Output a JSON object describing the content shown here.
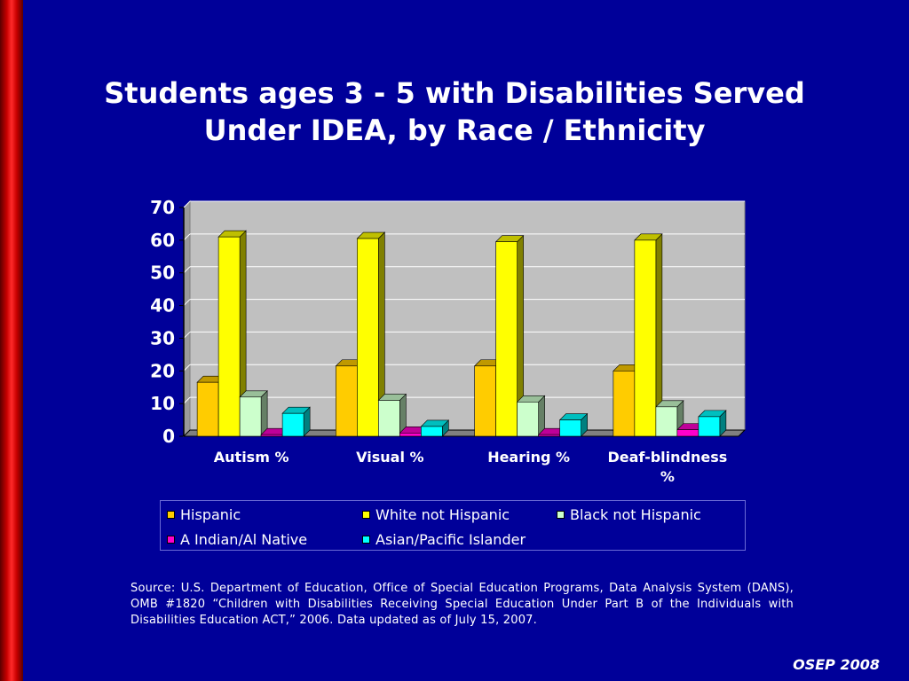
{
  "slide": {
    "title_line1": "Students ages 3 - 5 with Disabilities Served",
    "title_line2": "Under IDEA, by Race / Ethnicity",
    "source": "Source: U.S. Department of Education, Office of Special Education Programs, Data Analysis System (DANS), OMB #1820 “Children with Disabilities Receiving Special Education Under Part B of the Individuals with Disabilities Education ACT,” 2006. Data updated as of July 15, 2007.",
    "footer": "OSEP 2008"
  },
  "chart_data": {
    "type": "bar",
    "style": "3d-clustered-column",
    "title": "",
    "xlabel": "",
    "ylabel": "",
    "ylim": [
      0,
      70
    ],
    "yticks": [
      0,
      10,
      20,
      30,
      40,
      50,
      60,
      70
    ],
    "grid": true,
    "legend_position": "bottom",
    "categories": [
      "Autism %",
      "Visual %",
      "Hearing %",
      "Deaf-blindness %"
    ],
    "series": [
      {
        "name": "Hispanic",
        "values": [
          16.5,
          21.5,
          21.5,
          20
        ],
        "color": "#FFCC00"
      },
      {
        "name": "White not Hispanic",
        "values": [
          61,
          60.5,
          59.5,
          60
        ],
        "color": "#FFFF00"
      },
      {
        "name": "Black not Hispanic",
        "values": [
          12,
          11,
          10.5,
          9
        ],
        "color": "#CCFFCC"
      },
      {
        "name": "A Indian/Al Native",
        "values": [
          0.5,
          1,
          0.5,
          2
        ],
        "color": "#FF00CC"
      },
      {
        "name": "Asian/Pacific Islander",
        "values": [
          7,
          3,
          5,
          6
        ],
        "color": "#00FFFF"
      }
    ],
    "plot_background": "#C0C0C0"
  }
}
